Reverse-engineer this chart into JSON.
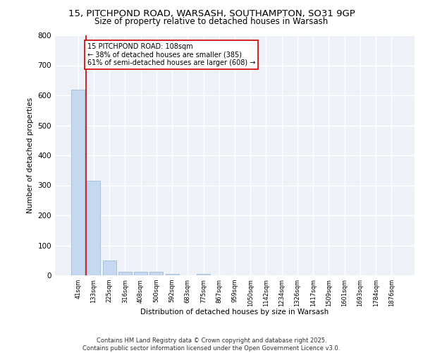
{
  "title_line1": "15, PITCHPOND ROAD, WARSASH, SOUTHAMPTON, SO31 9GP",
  "title_line2": "Size of property relative to detached houses in Warsash",
  "xlabel": "Distribution of detached houses by size in Warsash",
  "ylabel": "Number of detached properties",
  "categories": [
    "41sqm",
    "133sqm",
    "225sqm",
    "316sqm",
    "408sqm",
    "500sqm",
    "592sqm",
    "683sqm",
    "775sqm",
    "867sqm",
    "959sqm",
    "1050sqm",
    "1142sqm",
    "1234sqm",
    "1326sqm",
    "1417sqm",
    "1509sqm",
    "1601sqm",
    "1693sqm",
    "1784sqm",
    "1876sqm"
  ],
  "values": [
    620,
    315,
    50,
    12,
    12,
    12,
    5,
    0,
    4,
    0,
    0,
    0,
    0,
    0,
    0,
    0,
    0,
    0,
    0,
    0,
    0
  ],
  "bar_color": "#c5d8f0",
  "bar_edge_color": "#a0bcd8",
  "marker_color": "#cc0000",
  "annotation_text": "15 PITCHPOND ROAD: 108sqm\n← 38% of detached houses are smaller (385)\n61% of semi-detached houses are larger (608) →",
  "annotation_box_color": "#ffffff",
  "annotation_box_edge": "#cc0000",
  "ylim": [
    0,
    800
  ],
  "yticks": [
    0,
    100,
    200,
    300,
    400,
    500,
    600,
    700,
    800
  ],
  "footer_line1": "Contains HM Land Registry data © Crown copyright and database right 2025.",
  "footer_line2": "Contains public sector information licensed under the Open Government Licence v3.0.",
  "bg_color": "#eef2f8",
  "grid_color": "#ffffff"
}
